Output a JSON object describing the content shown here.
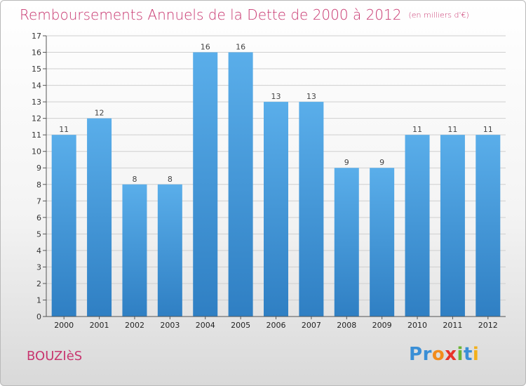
{
  "header": {
    "title": "Remboursements Annuels de la Dette de 2000 à 2012",
    "unit": "(en milliers d'€)"
  },
  "footer": {
    "commune": "BOUZIèS",
    "logo_letters": [
      {
        "ch": "P",
        "color": "#3a8fd6"
      },
      {
        "ch": "r",
        "color": "#3a8fd6"
      },
      {
        "ch": "o",
        "color": "#f28c1c"
      },
      {
        "ch": "x",
        "color": "#e8332a"
      },
      {
        "ch": "i",
        "color": "#6bb536"
      },
      {
        "ch": "t",
        "color": "#3a8fd6"
      },
      {
        "ch": "i",
        "color": "#f2b01c"
      }
    ]
  },
  "colors": {
    "title": "#c8366f",
    "bar_top": "#5aaeea",
    "bar_bottom": "#2f7fc3",
    "grid": "#cfcfcf"
  },
  "chart_data": {
    "type": "bar",
    "categories": [
      "2000",
      "2001",
      "2002",
      "2003",
      "2004",
      "2005",
      "2006",
      "2007",
      "2008",
      "2009",
      "2010",
      "2011",
      "2012"
    ],
    "values": [
      11,
      12,
      8,
      8,
      16,
      16,
      13,
      13,
      9,
      9,
      11,
      11,
      11
    ],
    "ylim": [
      0,
      17
    ],
    "yticks": [
      0,
      1,
      2,
      3,
      4,
      5,
      6,
      7,
      8,
      9,
      10,
      11,
      12,
      13,
      14,
      15,
      16,
      17
    ],
    "grid": true,
    "legend": "none"
  }
}
